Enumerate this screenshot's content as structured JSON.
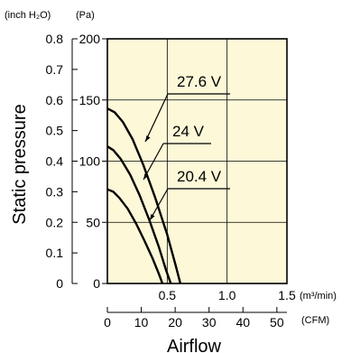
{
  "chart_data": {
    "type": "line",
    "title": "",
    "xlabel": "Airflow",
    "ylabel": "Static pressure",
    "y_unit_left": "(inch H₂O)",
    "y_unit_right": "(Pa)",
    "x_unit_top": "(m³/min)",
    "x_unit_bottom": "(CFM)",
    "xlim_m3min": [
      0,
      1.5
    ],
    "xticks_m3min": [
      "0",
      "0.5",
      "1.0",
      "1.5"
    ],
    "xlim_cfm": [
      0,
      52.97
    ],
    "xticks_cfm": [
      "0",
      "10",
      "20",
      "30",
      "40",
      "50"
    ],
    "ylim_pa": [
      0,
      200
    ],
    "yticks_pa": [
      "0",
      "50",
      "100",
      "150",
      "200"
    ],
    "ylim_inh2o": [
      0,
      0.8
    ],
    "yticks_inh2o": [
      "0",
      "0.1",
      "0.2",
      "0.3",
      "0.4",
      "0.5",
      "0.6",
      "0.7",
      "0.8"
    ],
    "grid": true,
    "background": "#fdf8d8",
    "series": [
      {
        "name": "27.6 V",
        "points": [
          [
            0,
            143
          ],
          [
            0.06,
            140
          ],
          [
            0.13,
            132
          ],
          [
            0.21,
            118
          ],
          [
            0.3,
            97
          ],
          [
            0.4,
            70
          ],
          [
            0.5,
            40
          ],
          [
            0.57,
            15
          ],
          [
            0.61,
            0
          ]
        ]
      },
      {
        "name": "24 V",
        "points": [
          [
            0,
            112
          ],
          [
            0.05,
            109
          ],
          [
            0.11,
            102
          ],
          [
            0.19,
            89
          ],
          [
            0.27,
            72
          ],
          [
            0.35,
            52
          ],
          [
            0.43,
            30
          ],
          [
            0.49,
            11
          ],
          [
            0.53,
            0
          ]
        ]
      },
      {
        "name": "20.4 V",
        "points": [
          [
            0,
            77
          ],
          [
            0.05,
            75
          ],
          [
            0.1,
            70
          ],
          [
            0.17,
            61
          ],
          [
            0.24,
            49
          ],
          [
            0.31,
            35
          ],
          [
            0.38,
            20
          ],
          [
            0.43,
            8
          ],
          [
            0.46,
            0
          ]
        ]
      }
    ]
  }
}
